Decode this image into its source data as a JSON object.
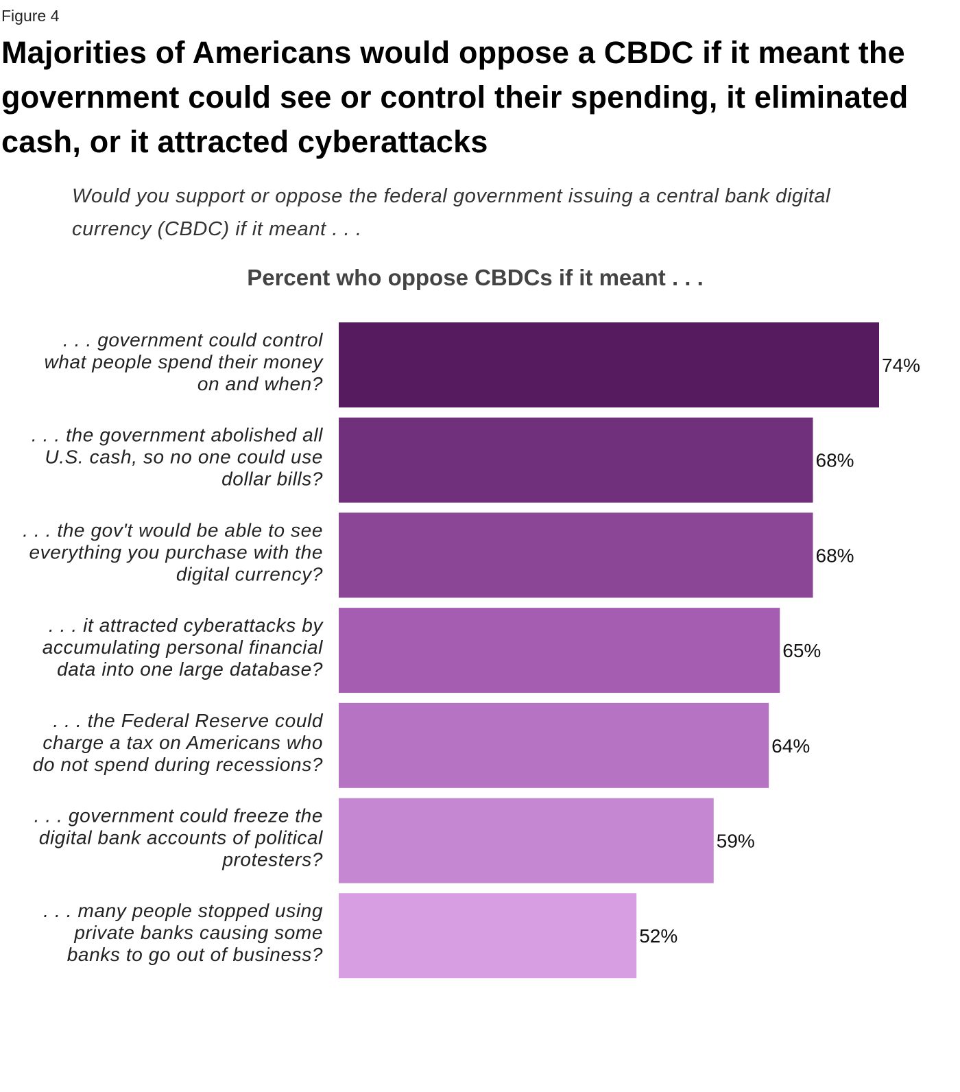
{
  "figure_label": "Figure 4",
  "title": "Majorities of Americans would oppose a CBDC if it meant the government could see or control their spending, it eliminated cash, or it attracted cyberattacks",
  "subtitle": "Would you support or oppose the federal government issuing a central bank digital currency (CBDC) if it meant . . .",
  "chart_data": {
    "type": "bar",
    "orientation": "horizontal",
    "title": "Percent who oppose CBDCs if it meant . . .",
    "categories": [
      ". . . government could control what people spend their money on and when?",
      ". . . the government abolished all U.S. cash, so no one could use dollar bills?",
      ". . . the gov't would be able to see everything you purchase with the digital currency?",
      ". . . it attracted cyberattacks by accumulating personal financial data into one large database?",
      ". . . the Federal Reserve could charge a tax on Americans who do not spend during recessions?",
      ". . . government could freeze the digital bank accounts of political protesters?",
      ". . . many people stopped using private banks causing some banks to go out of business?"
    ],
    "category_lines": [
      [
        ". . . government could control",
        "what people spend their money",
        "on and when?"
      ],
      [
        ". . . the government abolished all",
        "U.S. cash, so no one could use",
        "dollar bills?"
      ],
      [
        ". . . the gov't would be able to see",
        "everything you purchase with the",
        "digital currency?"
      ],
      [
        ". . . it attracted cyberattacks by",
        "accumulating personal financial",
        "data into one large database?"
      ],
      [
        ". . . the Federal Reserve could",
        "charge a tax on Americans who",
        "do not spend during recessions?"
      ],
      [
        ". . . government could freeze the",
        "digital bank accounts of political",
        "protesters?"
      ],
      [
        ". . . many people stopped using",
        "private banks causing some",
        "banks to go out of business?"
      ]
    ],
    "values": [
      74,
      68,
      68,
      65,
      64,
      59,
      52
    ],
    "data_labels": [
      "74%",
      "68%",
      "68%",
      "65%",
      "64%",
      "59%",
      "52%"
    ],
    "xlim": [
      25,
      74
    ],
    "grid": false,
    "colors": [
      "#561b5f",
      "#70307b",
      "#8b4796",
      "#a55db2",
      "#b673c3",
      "#c587d1",
      "#d79ee1"
    ]
  }
}
